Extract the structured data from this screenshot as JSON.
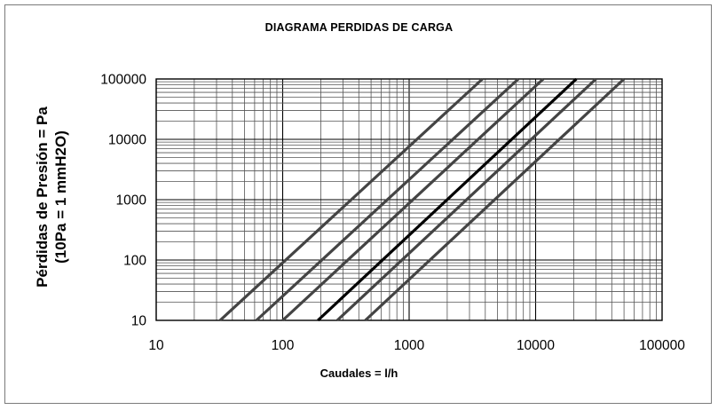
{
  "chart_data": {
    "type": "line",
    "title": "DIAGRAMA PERDIDAS DE CARGA",
    "xlabel": "Caudales = l/h",
    "ylabel_lines": [
      "Pérdidas de Presión = Pa",
      "(10Pa = 1 mmH2O)"
    ],
    "xscale": "log",
    "yscale": "log",
    "xlim": [
      10,
      100000
    ],
    "ylim": [
      10,
      100000
    ],
    "x_tick_labels": [
      "10",
      "100",
      "1000",
      "10000",
      "100000"
    ],
    "y_tick_labels": [
      "100000",
      "10000",
      "1000",
      "100",
      "10"
    ],
    "grid": true,
    "legend": "none",
    "series": [
      {
        "x": [
          32,
          3800
        ],
        "y": [
          10,
          100000
        ],
        "color": "#444444"
      },
      {
        "x": [
          62,
          7300
        ],
        "y": [
          10,
          100000
        ],
        "color": "#444444"
      },
      {
        "x": [
          100,
          11500
        ],
        "y": [
          10,
          100000
        ],
        "color": "#444444"
      },
      {
        "x": [
          190,
          21000
        ],
        "y": [
          10,
          100000
        ],
        "color": "#000000"
      },
      {
        "x": [
          270,
          30000
        ],
        "y": [
          10,
          100000
        ],
        "color": "#444444"
      },
      {
        "x": [
          450,
          50000
        ],
        "y": [
          10,
          100000
        ],
        "color": "#444444"
      }
    ]
  }
}
